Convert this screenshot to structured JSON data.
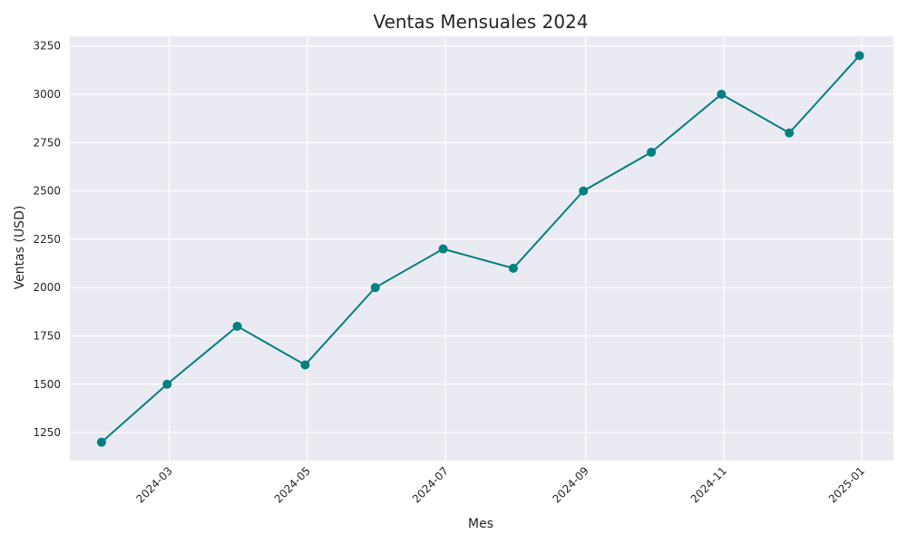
{
  "chart_data": {
    "type": "line",
    "title": "Ventas Mensuales 2024",
    "xlabel": "Mes",
    "ylabel": "Ventas (USD)",
    "x": [
      "2024-01-31",
      "2024-02-29",
      "2024-03-31",
      "2024-04-30",
      "2024-05-31",
      "2024-06-30",
      "2024-07-31",
      "2024-08-31",
      "2024-09-30",
      "2024-10-31",
      "2024-11-30",
      "2024-12-31"
    ],
    "series": [
      {
        "values": [
          1200,
          1500,
          1800,
          1600,
          2000,
          2200,
          2100,
          2500,
          2700,
          3000,
          2800,
          3200
        ]
      }
    ],
    "x_ticks": [
      "2024-03",
      "2024-05",
      "2024-07",
      "2024-09",
      "2024-11",
      "2025-01"
    ],
    "y_ticks": [
      1250,
      1500,
      1750,
      2000,
      2250,
      2500,
      2750,
      3000,
      3250
    ],
    "ylim": [
      1105,
      3300
    ],
    "xlim": [
      "2024-01-17",
      "2025-01-15"
    ],
    "grid": true,
    "colors": {
      "series": "#008080",
      "plot_background": "#eaeaf2",
      "grid": "#ffffff"
    }
  }
}
